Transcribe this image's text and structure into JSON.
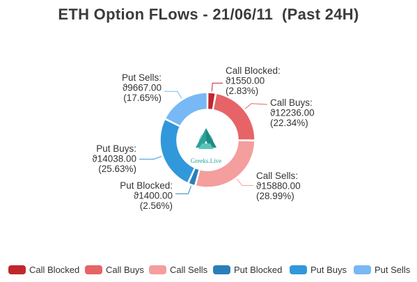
{
  "title": "ETH Option FLows - 21/06/11  (Past 24H)",
  "logo": {
    "icon": "greeks-live-logo-icon",
    "text": "Greeks.Live",
    "color": "#2aa39a"
  },
  "chart_data": {
    "type": "pie",
    "variant": "donut",
    "title": "ETH Option FLows - 21/06/11  (Past 24H)",
    "currency_symbol": "ϑ",
    "legend_position": "bottom",
    "slices": [
      {
        "name": "Call Blocked",
        "value": 1550.0,
        "value_label": "ϑ1550.00",
        "percent_label": "(2.83%)",
        "color": "#c0272d"
      },
      {
        "name": "Call Buys",
        "value": 12236.0,
        "value_label": "ϑ12236.00",
        "percent_label": "(22.34%)",
        "color": "#e66467"
      },
      {
        "name": "Call Sells",
        "value": 15880.0,
        "value_label": "ϑ15880.00",
        "percent_label": "(28.99%)",
        "color": "#f49e9d"
      },
      {
        "name": "Put Blocked",
        "value": 1400.0,
        "value_label": "ϑ1400.00",
        "percent_label": "(2.56%)",
        "color": "#2a7fba"
      },
      {
        "name": "Put Buys",
        "value": 14038.0,
        "value_label": "ϑ14038.00",
        "percent_label": "(25.63%)",
        "color": "#3198dc"
      },
      {
        "name": "Put Sells",
        "value": 9667.0,
        "value_label": "ϑ9667.00",
        "percent_label": "(17.65%)",
        "color": "#78b8f4"
      }
    ]
  }
}
